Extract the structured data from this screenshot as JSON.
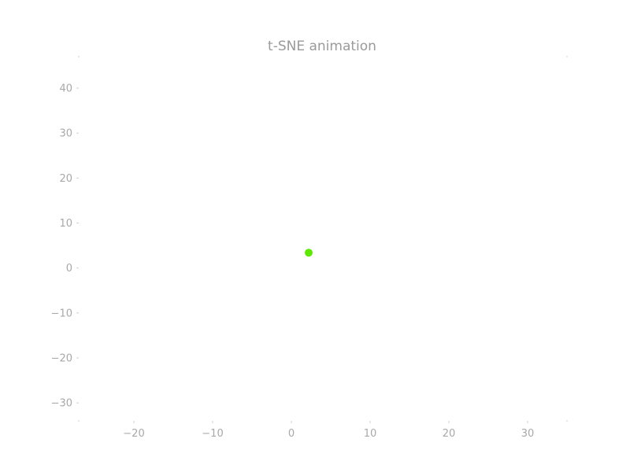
{
  "chart_data": {
    "type": "scatter",
    "title": "t-SNE animation",
    "xlabel": "",
    "ylabel": "",
    "xlim": [
      -27,
      35
    ],
    "ylim": [
      -34,
      47
    ],
    "x_ticks": [
      -20,
      -10,
      0,
      10,
      20,
      30
    ],
    "x_tick_labels": [
      "−20",
      "−10",
      "0",
      "10",
      "20",
      "30"
    ],
    "y_ticks": [
      40,
      30,
      20,
      10,
      0,
      -10,
      -20,
      -30
    ],
    "y_tick_labels": [
      "40",
      "30",
      "20",
      "10",
      "0",
      "−10",
      "−20",
      "−30"
    ],
    "grid": false,
    "legend": "none",
    "points": [
      {
        "x": 2.2,
        "y": 3.4,
        "color": "#5ee800"
      }
    ]
  },
  "colors": {
    "point": "#5ee800",
    "title": "#9a9a9a",
    "tick_label": "#a8a8a8",
    "background": "#ffffff"
  }
}
